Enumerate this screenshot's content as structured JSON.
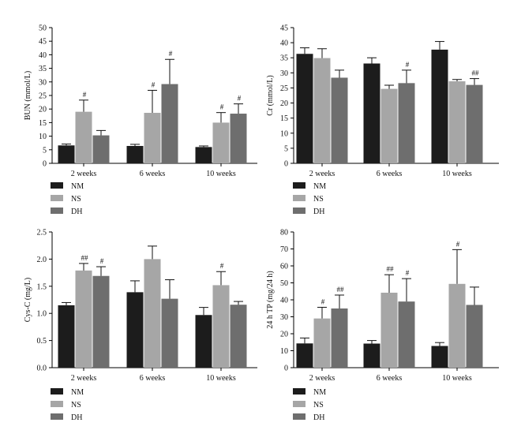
{
  "legend_labels": [
    "NM",
    "NS",
    "DH"
  ],
  "series_colors": [
    "#1c1c1c",
    "#a6a6a6",
    "#6e6e6e"
  ],
  "chart_data": [
    {
      "type": "bar",
      "ylabel": "BUN (mmol/L)",
      "ylim": [
        0,
        50
      ],
      "yticks": [
        0,
        5,
        10,
        15,
        20,
        25,
        30,
        35,
        40,
        45,
        50
      ],
      "categories": [
        "2 weeks",
        "6 weeks",
        "10 weeks"
      ],
      "series": [
        {
          "name": "NM",
          "values": [
            6.6,
            6.4,
            6.0
          ],
          "errors": [
            0.5,
            0.6,
            0.4
          ],
          "annotations": [
            "",
            "",
            ""
          ]
        },
        {
          "name": "NS",
          "values": [
            19.0,
            18.6,
            15.0
          ],
          "errors": [
            4.3,
            8.3,
            3.7
          ],
          "annotations": [
            "#",
            "#",
            "#"
          ]
        },
        {
          "name": "DH",
          "values": [
            10.3,
            29.2,
            18.3
          ],
          "errors": [
            1.8,
            9.1,
            3.6
          ],
          "annotations": [
            "",
            "#",
            "#"
          ]
        }
      ],
      "legend": "bottom-left"
    },
    {
      "type": "bar",
      "ylabel": "Cr (mmol/L)",
      "ylim": [
        0,
        45
      ],
      "yticks": [
        0,
        5,
        10,
        15,
        20,
        25,
        30,
        35,
        40,
        45
      ],
      "categories": [
        "2 weeks",
        "6 weeks",
        "10 weeks"
      ],
      "series": [
        {
          "name": "NM",
          "values": [
            36.3,
            33.1,
            37.7
          ],
          "errors": [
            2.0,
            1.9,
            2.7
          ],
          "annotations": [
            "",
            "",
            ""
          ]
        },
        {
          "name": "NS",
          "values": [
            34.9,
            24.7,
            27.2
          ],
          "errors": [
            3.1,
            1.2,
            0.6
          ],
          "annotations": [
            "",
            "",
            ""
          ]
        },
        {
          "name": "DH",
          "values": [
            28.4,
            26.6,
            26.0
          ],
          "errors": [
            2.5,
            4.3,
            2.1
          ],
          "annotations": [
            "",
            "#",
            "##"
          ]
        }
      ],
      "legend": "bottom-left"
    },
    {
      "type": "bar",
      "ylabel": "Cys-C (mg/L)",
      "ylim": [
        0,
        2.5
      ],
      "yticks": [
        0.0,
        0.5,
        1.0,
        1.5,
        2.0,
        2.5
      ],
      "ytick_labels": [
        "0.0",
        "0.5",
        "1.0",
        "1.5",
        "2.0",
        "2.5"
      ],
      "categories": [
        "2 weeks",
        "6 weeks",
        "10 weeks"
      ],
      "series": [
        {
          "name": "NM",
          "values": [
            1.15,
            1.39,
            0.97
          ],
          "errors": [
            0.05,
            0.21,
            0.14
          ],
          "annotations": [
            "",
            "",
            ""
          ]
        },
        {
          "name": "NS",
          "values": [
            1.79,
            2.0,
            1.52
          ],
          "errors": [
            0.13,
            0.24,
            0.25
          ],
          "annotations": [
            "##",
            "",
            "#"
          ]
        },
        {
          "name": "DH",
          "values": [
            1.69,
            1.27,
            1.16
          ],
          "errors": [
            0.17,
            0.35,
            0.06
          ],
          "annotations": [
            "#",
            "",
            ""
          ]
        }
      ],
      "legend": "bottom-left"
    },
    {
      "type": "bar",
      "ylabel": "24 h TP (mg/24 h)",
      "ylim": [
        0,
        80
      ],
      "yticks": [
        0,
        10,
        20,
        30,
        40,
        50,
        60,
        70,
        80
      ],
      "categories": [
        "2 weeks",
        "6 weeks",
        "10 weeks"
      ],
      "series": [
        {
          "name": "NM",
          "values": [
            14.3,
            14.2,
            12.8
          ],
          "errors": [
            3.2,
            1.8,
            2.0
          ],
          "annotations": [
            "",
            "",
            ""
          ]
        },
        {
          "name": "NS",
          "values": [
            29.0,
            44.2,
            49.4
          ],
          "errors": [
            6.6,
            10.6,
            20.2
          ],
          "annotations": [
            "#",
            "##",
            "#"
          ]
        },
        {
          "name": "DH",
          "values": [
            34.9,
            39.0,
            37.0
          ],
          "errors": [
            7.9,
            13.5,
            10.5
          ],
          "annotations": [
            "##",
            "#",
            ""
          ]
        }
      ],
      "legend": "bottom-left"
    }
  ]
}
